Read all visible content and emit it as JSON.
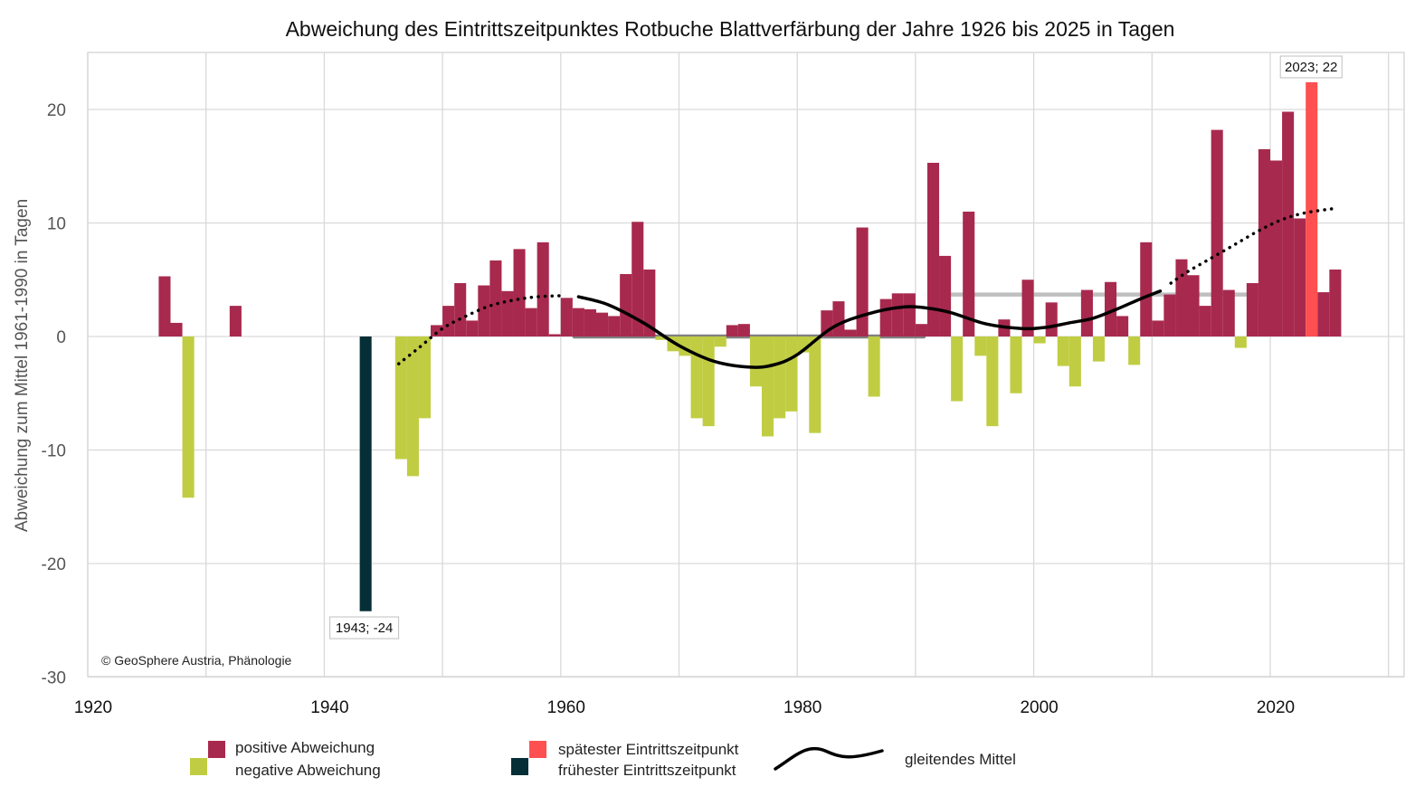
{
  "chart_data": {
    "type": "bar",
    "title": "Abweichung des Eintrittszeitpunktes Rotbuche Blattverfärbung der Jahre 1926 bis 2025 in Tagen",
    "xlabel": "",
    "ylabel": "Abweichung zum Mittel 1961-1990 in Tagen",
    "xlim": [
      1920,
      2031
    ],
    "ylim": [
      -30,
      25
    ],
    "x_ticks": [
      1920,
      1940,
      1960,
      1980,
      2000,
      2020
    ],
    "x_grid": [
      1920,
      1930,
      1940,
      1950,
      1960,
      1970,
      1980,
      1990,
      2000,
      2010,
      2020,
      2030
    ],
    "y_ticks": [
      20,
      10,
      0,
      -10,
      -20,
      -30
    ],
    "grid": true,
    "colors": {
      "positive": "#a8294e",
      "negative": "#c0cd42",
      "latest": "#fe5050",
      "earliest": "#062e36",
      "ref_1961_1990": "#808080",
      "ref_1991_2020": "#bfbfbf",
      "moving_average": "#000000",
      "grid": "#d9d9d9"
    },
    "years": [
      1926,
      1927,
      1928,
      1932,
      1943,
      1946,
      1947,
      1948,
      1949,
      1950,
      1951,
      1952,
      1953,
      1954,
      1955,
      1956,
      1957,
      1958,
      1959,
      1960,
      1961,
      1962,
      1963,
      1964,
      1965,
      1966,
      1967,
      1968,
      1969,
      1970,
      1971,
      1972,
      1973,
      1974,
      1975,
      1976,
      1977,
      1978,
      1979,
      1980,
      1981,
      1982,
      1983,
      1984,
      1985,
      1986,
      1987,
      1988,
      1989,
      1990,
      1991,
      1992,
      1993,
      1994,
      1995,
      1996,
      1997,
      1998,
      1999,
      2000,
      2001,
      2002,
      2003,
      2004,
      2005,
      2006,
      2007,
      2008,
      2009,
      2010,
      2011,
      2012,
      2013,
      2014,
      2015,
      2016,
      2017,
      2018,
      2019,
      2020,
      2021,
      2022,
      2023,
      2024,
      2025
    ],
    "values": [
      5.3,
      1.2,
      -14.2,
      2.7,
      -24.2,
      -10.8,
      -12.3,
      -7.2,
      1.0,
      2.7,
      4.7,
      1.4,
      4.5,
      6.7,
      4.0,
      7.7,
      2.5,
      8.3,
      0.2,
      3.4,
      2.5,
      2.4,
      2.1,
      1.8,
      5.5,
      10.1,
      5.9,
      -0.3,
      -1.3,
      -1.7,
      -7.2,
      -7.9,
      -0.9,
      1.0,
      1.1,
      -4.4,
      -8.8,
      -7.2,
      -6.6,
      -1.4,
      -8.5,
      2.3,
      3.1,
      0.6,
      9.6,
      -5.3,
      3.3,
      3.8,
      3.8,
      1.1,
      15.3,
      7.1,
      -5.7,
      11.0,
      -1.7,
      -7.9,
      1.5,
      -5.0,
      5.0,
      -0.6,
      3.0,
      -2.6,
      -4.4,
      4.1,
      -2.2,
      4.8,
      1.8,
      -2.5,
      8.3,
      1.4,
      3.7,
      6.8,
      5.4,
      2.7,
      18.2,
      4.1,
      -1.0,
      4.7,
      16.5,
      15.5,
      19.8,
      10.4,
      22.4,
      3.9,
      5.9
    ],
    "extremes": {
      "latest": {
        "year": 2023,
        "value": 22,
        "label": "2023; 22"
      },
      "earliest": {
        "year": 1943,
        "value": -24,
        "label": "1943; -24"
      }
    },
    "reference_lines": [
      {
        "name": "Mittel 1961-1990",
        "from": 1961,
        "to": 1990,
        "value": 0
      },
      {
        "name": "Mittel 1991-2020",
        "from": 1991,
        "to": 2020,
        "value": 3.7
      }
    ],
    "moving_average": {
      "x": [
        1961.5,
        1964,
        1967,
        1970,
        1973,
        1976,
        1978,
        1980,
        1983,
        1986,
        1989,
        1991,
        1993,
        1996,
        1999,
        2001,
        2003,
        2005,
        2007,
        2009,
        2010.7
      ],
      "y": [
        3.5,
        2.8,
        1.2,
        -0.8,
        -2.2,
        -2.7,
        -2.5,
        -1.6,
        0.8,
        2.0,
        2.6,
        2.5,
        2.1,
        1.1,
        0.7,
        0.8,
        1.2,
        1.6,
        2.4,
        3.3,
        4.0
      ]
    },
    "moving_average_extrapolated": [
      {
        "x": [
          1946.3,
          1948,
          1950,
          1952,
          1954,
          1956,
          1958,
          1960.2
        ],
        "y": [
          -2.4,
          -1.0,
          0.7,
          1.8,
          2.7,
          3.2,
          3.5,
          3.6
        ]
      },
      {
        "x": [
          2011.6,
          2013,
          2015,
          2017,
          2019,
          2021,
          2023,
          2025.6
        ],
        "y": [
          4.7,
          5.7,
          6.9,
          8.1,
          9.3,
          10.3,
          10.9,
          11.3
        ]
      }
    ],
    "legend": {
      "position": "bottom",
      "entries": [
        {
          "label": "positive Abweichung",
          "kind": "square",
          "color_key": "positive"
        },
        {
          "label": "negative Abweichung",
          "kind": "square",
          "color_key": "negative"
        },
        {
          "label": "spätester Eintrittszeitpunkt",
          "kind": "square",
          "color_key": "latest"
        },
        {
          "label": "frühester Eintrittszeitpunkt",
          "kind": "square",
          "color_key": "earliest"
        },
        {
          "label": "gleitendes Mittel",
          "kind": "line",
          "color_key": "moving_average"
        }
      ]
    },
    "copyright": "© GeoSphere Austria, Phänologie"
  }
}
